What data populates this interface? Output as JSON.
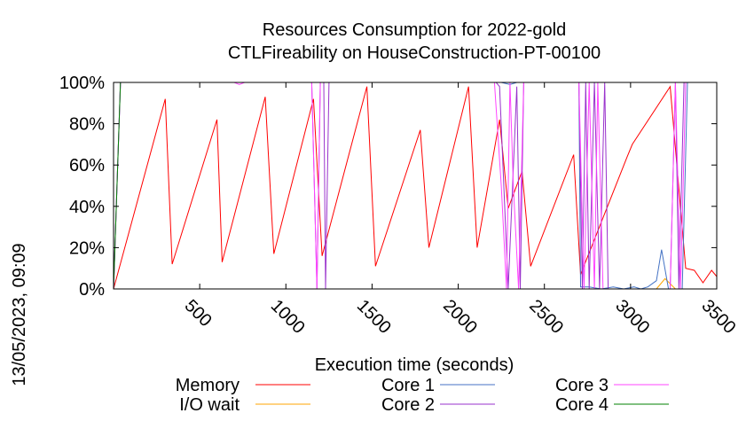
{
  "chart_data": {
    "type": "line",
    "title": "Resources Consumption for 2022-gold",
    "subtitle": "CTLFireability on HouseConstruction-PT-00100",
    "xlabel": "Execution time (seconds)",
    "side_label": "13/05/2023, 09:09",
    "xlim": [
      0,
      3500
    ],
    "ylim": [
      0,
      100
    ],
    "x_ticks": [
      500,
      1000,
      1500,
      2000,
      2500,
      3000,
      3500
    ],
    "x_tick_labels": [
      "500",
      "1000",
      "1500",
      "2000",
      "2500",
      "3000",
      "3500"
    ],
    "y_ticks": [
      0,
      20,
      40,
      60,
      80,
      100
    ],
    "y_tick_labels": [
      "0%",
      "20%",
      "40%",
      "60%",
      "80%",
      "100%"
    ],
    "grid": false,
    "legend_position": "bottom",
    "series": [
      {
        "name": "Memory",
        "color": "#ff0000",
        "points": [
          [
            0,
            0
          ],
          [
            300,
            92
          ],
          [
            340,
            12
          ],
          [
            600,
            82
          ],
          [
            630,
            13
          ],
          [
            880,
            93
          ],
          [
            930,
            17
          ],
          [
            1160,
            92
          ],
          [
            1210,
            16
          ],
          [
            1470,
            98
          ],
          [
            1520,
            11
          ],
          [
            1780,
            77
          ],
          [
            1830,
            20
          ],
          [
            2060,
            98
          ],
          [
            2110,
            20
          ],
          [
            2240,
            82
          ],
          [
            2290,
            39
          ],
          [
            2370,
            57
          ],
          [
            2420,
            11
          ],
          [
            2670,
            65
          ],
          [
            2710,
            7
          ],
          [
            2980,
            64
          ],
          [
            3010,
            70
          ],
          [
            3230,
            98
          ],
          [
            3320,
            10
          ],
          [
            3370,
            9
          ],
          [
            3420,
            3
          ],
          [
            3470,
            9
          ],
          [
            3500,
            6
          ]
        ]
      },
      {
        "name": "I/O wait",
        "color": "#ffa500",
        "points": [
          [
            0,
            0
          ],
          [
            2710,
            0
          ],
          [
            3150,
            0
          ],
          [
            3200,
            5
          ],
          [
            3260,
            0
          ],
          [
            3500,
            0
          ]
        ]
      },
      {
        "name": "Core 1",
        "color": "#4472c4",
        "points": [
          [
            0,
            0
          ],
          [
            40,
            100
          ],
          [
            2250,
            100
          ],
          [
            2300,
            99
          ],
          [
            2340,
            100
          ],
          [
            2700,
            100
          ],
          [
            2710,
            1
          ],
          [
            2760,
            1
          ],
          [
            2830,
            0
          ],
          [
            2900,
            1
          ],
          [
            2960,
            0
          ],
          [
            3020,
            1
          ],
          [
            3060,
            0
          ],
          [
            3100,
            1
          ],
          [
            3150,
            4
          ],
          [
            3180,
            19
          ],
          [
            3220,
            0
          ],
          [
            3300,
            0
          ],
          [
            3330,
            100
          ],
          [
            3500,
            100
          ]
        ]
      },
      {
        "name": "Core 2",
        "color": "#9932cc",
        "points": [
          [
            0,
            0
          ],
          [
            40,
            100
          ],
          [
            1150,
            100
          ],
          [
            1180,
            0
          ],
          [
            1200,
            100
          ],
          [
            1220,
            100
          ],
          [
            1230,
            0
          ],
          [
            1250,
            100
          ],
          [
            2220,
            100
          ],
          [
            2240,
            98
          ],
          [
            2290,
            0
          ],
          [
            2340,
            98
          ],
          [
            2360,
            0
          ],
          [
            2380,
            100
          ],
          [
            2700,
            100
          ],
          [
            2720,
            0
          ],
          [
            2740,
            100
          ],
          [
            2760,
            0
          ],
          [
            2790,
            100
          ],
          [
            2820,
            0
          ],
          [
            2850,
            100
          ],
          [
            2870,
            0
          ],
          [
            2900,
            0
          ],
          [
            3230,
            0
          ],
          [
            3260,
            100
          ],
          [
            3280,
            0
          ],
          [
            3310,
            100
          ],
          [
            3500,
            100
          ]
        ]
      },
      {
        "name": "Core 3",
        "color": "#ff44ff",
        "points": [
          [
            0,
            0
          ],
          [
            40,
            100
          ],
          [
            700,
            100
          ],
          [
            730,
            99
          ],
          [
            760,
            100
          ],
          [
            1150,
            100
          ],
          [
            1180,
            0
          ],
          [
            1200,
            100
          ],
          [
            2210,
            100
          ],
          [
            2250,
            50
          ],
          [
            2280,
            0
          ],
          [
            2300,
            100
          ],
          [
            2320,
            50
          ],
          [
            2350,
            0
          ],
          [
            2380,
            100
          ],
          [
            2700,
            100
          ],
          [
            2730,
            0
          ],
          [
            2760,
            100
          ],
          [
            2790,
            0
          ],
          [
            2810,
            100
          ],
          [
            2840,
            0
          ],
          [
            3230,
            0
          ],
          [
            3260,
            100
          ],
          [
            3290,
            0
          ],
          [
            3320,
            100
          ],
          [
            3500,
            100
          ]
        ]
      },
      {
        "name": "Core 4",
        "color": "#008000",
        "points": [
          [
            0,
            0
          ],
          [
            40,
            100
          ],
          [
            3500,
            100
          ]
        ]
      }
    ]
  }
}
